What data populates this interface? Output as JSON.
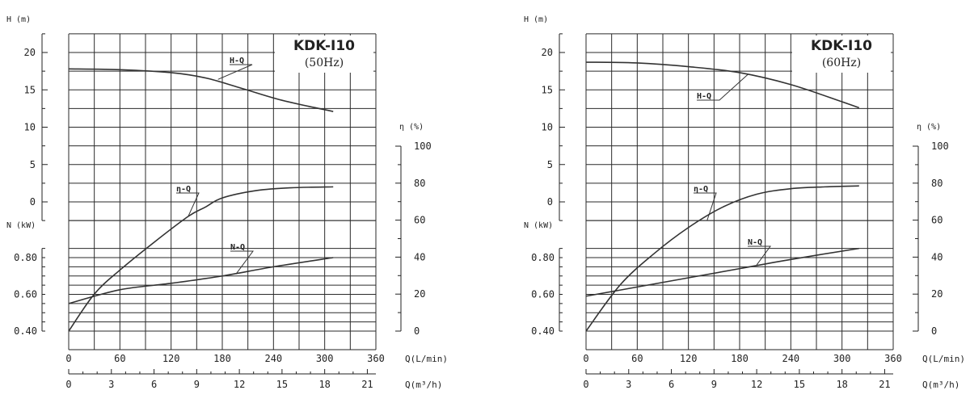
{
  "chart_data": [
    {
      "type": "line",
      "title": "KDK-I10",
      "subtitle": "(50Hz)",
      "y_head_label": "H (m)",
      "y_power_label": "N (kW)",
      "y_eff_label": "η (%)",
      "x_flow_label": "Q(L/min)",
      "x_m3h_label": "Q(m³/h)",
      "head_ticks": [
        "0",
        "5",
        "10",
        "15",
        "20"
      ],
      "power_ticks": [
        "0.40",
        "0.60",
        "0.80"
      ],
      "eff_ticks": [
        "0",
        "20",
        "40",
        "60",
        "80",
        "100"
      ],
      "x_flow_ticks": [
        "0",
        "60",
        "120",
        "180",
        "240",
        "300",
        "360"
      ],
      "x_m3h_ticks": [
        "0",
        "3",
        "6",
        "9",
        "12",
        "15",
        "18",
        "21"
      ],
      "xlim": [
        0,
        360
      ],
      "ylim_head": [
        0,
        20
      ],
      "ylim_power": [
        0.4,
        0.8
      ],
      "ylim_eff": [
        0,
        100
      ],
      "grid": true,
      "series": [
        {
          "name": "H-Q",
          "axis": "head",
          "x": [
            0,
            60,
            120,
            160,
            200,
            250,
            310
          ],
          "y": [
            17.8,
            17.7,
            17.3,
            16.6,
            15.3,
            13.6,
            12.1
          ]
        },
        {
          "name": "η-Q",
          "axis": "efficiency",
          "x": [
            0,
            30,
            60,
            100,
            140,
            160,
            180,
            220,
            260,
            310
          ],
          "y": [
            0,
            20,
            33,
            48,
            62,
            67,
            72,
            76,
            77.5,
            78
          ]
        },
        {
          "name": "N-Q",
          "axis": "power",
          "x": [
            0,
            60,
            120,
            180,
            240,
            310
          ],
          "y": [
            0.55,
            0.625,
            0.66,
            0.7,
            0.75,
            0.8
          ]
        }
      ]
    },
    {
      "type": "line",
      "title": "KDK-I10",
      "subtitle": "(60Hz)",
      "y_head_label": "H (m)",
      "y_power_label": "N (kW)",
      "y_eff_label": "η (%)",
      "x_flow_label": "Q(L/min)",
      "x_m3h_label": "Q(m³/h)",
      "head_ticks": [
        "0",
        "5",
        "10",
        "15",
        "20"
      ],
      "power_ticks": [
        "0.40",
        "0.60",
        "0.80"
      ],
      "eff_ticks": [
        "0",
        "20",
        "40",
        "60",
        "80",
        "100"
      ],
      "x_flow_ticks": [
        "0",
        "60",
        "120",
        "180",
        "240",
        "300",
        "360"
      ],
      "x_m3h_ticks": [
        "0",
        "3",
        "6",
        "9",
        "12",
        "15",
        "18",
        "21"
      ],
      "xlim": [
        0,
        360
      ],
      "ylim_head": [
        0,
        20
      ],
      "ylim_power": [
        0.4,
        0.8
      ],
      "ylim_eff": [
        0,
        100
      ],
      "grid": true,
      "series": [
        {
          "name": "H-Q",
          "axis": "head",
          "x": [
            0,
            60,
            120,
            180,
            240,
            300,
            320
          ],
          "y": [
            18.7,
            18.6,
            18.1,
            17.3,
            15.7,
            13.4,
            12.6
          ]
        },
        {
          "name": "η-Q",
          "axis": "efficiency",
          "x": [
            0,
            40,
            80,
            120,
            160,
            200,
            240,
            280,
            320
          ],
          "y": [
            0,
            25,
            42,
            56,
            67,
            74,
            77,
            78,
            78.5
          ]
        },
        {
          "name": "N-Q",
          "axis": "power",
          "x": [
            0,
            60,
            120,
            180,
            240,
            320
          ],
          "y": [
            0.59,
            0.64,
            0.69,
            0.74,
            0.79,
            0.85
          ]
        }
      ]
    }
  ]
}
